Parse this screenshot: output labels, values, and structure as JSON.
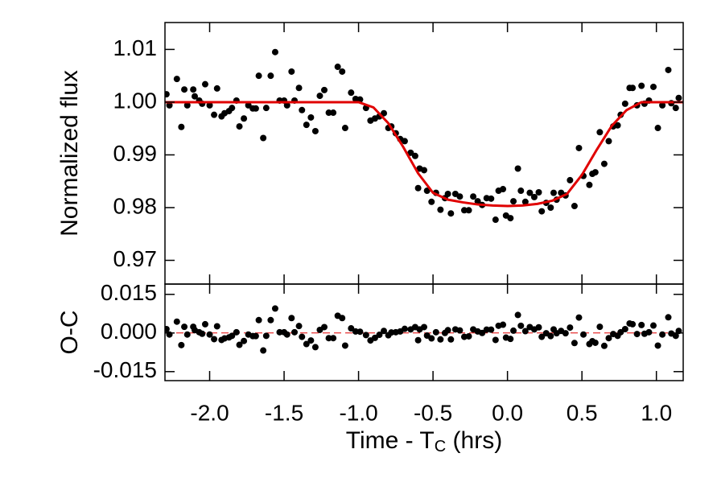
{
  "chart_data": [
    {
      "type": "scatter",
      "ylabel": "Normalized flux",
      "xlim": [
        -2.3,
        1.18
      ],
      "ylim": [
        0.9655,
        1.0151
      ],
      "xticks": [
        -2.0,
        -1.5,
        -1.0,
        -0.5,
        0.0,
        0.5,
        1.0
      ],
      "show_xtick_labels": false,
      "yticks": [
        0.97,
        0.98,
        0.99,
        {
          "value": 1.0,
          "label": "1.00"
        },
        1.01
      ],
      "x": [
        -2.29,
        -2.27,
        -2.22,
        -2.19,
        -2.17,
        -2.15,
        -2.11,
        -2.1,
        -2.07,
        -2.05,
        -2.03,
        -2.0,
        -1.97,
        -1.95,
        -1.92,
        -1.9,
        -1.87,
        -1.85,
        -1.82,
        -1.8,
        -1.77,
        -1.74,
        -1.71,
        -1.69,
        -1.67,
        -1.64,
        -1.62,
        -1.59,
        -1.56,
        -1.53,
        -1.5,
        -1.48,
        -1.45,
        -1.43,
        -1.4,
        -1.38,
        -1.35,
        -1.32,
        -1.29,
        -1.26,
        -1.23,
        -1.2,
        -1.17,
        -1.14,
        -1.11,
        -1.09,
        -1.05,
        -1.02,
        -0.99,
        -0.95,
        -0.92,
        -0.89,
        -0.86,
        -0.83,
        -0.8,
        -0.78,
        -0.75,
        -0.72,
        -0.69,
        -0.65,
        -0.62,
        -0.6,
        -0.59,
        -0.56,
        -0.54,
        -0.51,
        -0.48,
        -0.45,
        -0.42,
        -0.4,
        -0.38,
        -0.35,
        -0.32,
        -0.29,
        -0.26,
        -0.23,
        -0.2,
        -0.17,
        -0.14,
        -0.11,
        -0.08,
        -0.06,
        -0.03,
        -0.01,
        0.02,
        0.04,
        0.07,
        0.09,
        0.12,
        0.15,
        0.18,
        0.21,
        0.23,
        0.26,
        0.29,
        0.31,
        0.33,
        0.36,
        0.39,
        0.42,
        0.45,
        0.48,
        0.51,
        0.55,
        0.57,
        0.59,
        0.62,
        0.65,
        0.68,
        0.71,
        0.74,
        0.76,
        0.79,
        0.82,
        0.84,
        0.87,
        0.9,
        0.92,
        0.95,
        0.98,
        1.01,
        1.04,
        1.08,
        1.1,
        1.13,
        1.15
      ],
      "series": [
        {
          "style": "points",
          "color": "#000000",
          "values": [
            1.0015,
            0.9994,
            1.0044,
            0.9953,
            1.0024,
            0.9994,
            1.0024,
            1.0011,
            1.0003,
            0.9997,
            1.0034,
            0.9994,
            0.9976,
            1.0026,
            0.9973,
            0.9979,
            0.9983,
            0.9989,
            1.0003,
            0.9954,
            0.9969,
            0.9994,
            0.9988,
            0.9988,
            1.005,
            0.9932,
            0.9989,
            1.005,
            1.0095,
            1.0003,
            1.0003,
            0.9994,
            1.0058,
            1.0003,
            1.0027,
            0.9985,
            0.9957,
            0.9971,
            0.9945,
            1.0012,
            1.0023,
            0.998,
            0.998,
            1.0067,
            1.0058,
            0.9951,
            1.0018,
            1.0006,
            1.0005,
            0.9989,
            0.9965,
            0.9969,
            0.9973,
            0.9979,
            0.9951,
            0.9954,
            0.9941,
            0.993,
            0.9926,
            0.9904,
            0.9898,
            0.9837,
            0.9874,
            0.9871,
            0.9832,
            0.9811,
            0.9828,
            0.9796,
            0.9818,
            0.9826,
            0.9789,
            0.9826,
            0.9821,
            0.9795,
            0.9795,
            0.9821,
            0.9812,
            0.9805,
            0.9818,
            0.9817,
            0.9777,
            0.9832,
            0.9835,
            0.9785,
            0.978,
            0.9812,
            0.9874,
            0.9832,
            0.9811,
            0.9828,
            0.982,
            0.9829,
            0.9793,
            0.9809,
            0.98,
            0.9828,
            0.9815,
            0.9828,
            0.9823,
            0.9852,
            0.9803,
            0.9913,
            0.986,
            0.9843,
            0.9864,
            0.9867,
            0.9943,
            0.9883,
            0.9926,
            0.9954,
            0.9956,
            0.9976,
            0.9997,
            1.0027,
            1.0027,
            0.9994,
            1.0031,
            0.9997,
            1.0003,
            1.0029,
            0.9951,
            0.9994,
            1.0061,
            0.9998,
            0.9989,
            1.0008
          ]
        },
        {
          "style": "line",
          "color": "#e00000",
          "x": [
            -2.3,
            -1.0,
            -0.9,
            -0.8,
            -0.7,
            -0.6,
            -0.5,
            -0.4,
            -0.3,
            -0.2,
            -0.1,
            0.0,
            0.1,
            0.2,
            0.3,
            0.4,
            0.5,
            0.6,
            0.7,
            0.8,
            0.9,
            1.18
          ],
          "values": [
            1.0,
            1.0,
            0.999,
            0.996,
            0.9915,
            0.9865,
            0.9828,
            0.9815,
            0.981,
            0.9806,
            0.9804,
            0.9803,
            0.9804,
            0.9807,
            0.9813,
            0.9826,
            0.9862,
            0.991,
            0.9955,
            0.9985,
            1.0,
            1.0
          ]
        }
      ]
    },
    {
      "type": "scatter",
      "ylabel": "O-C",
      "xlabel": [
        "Time - T",
        "C",
        " (hrs)"
      ],
      "xlim": [
        -2.3,
        1.18
      ],
      "ylim": [
        -0.0185,
        0.019
      ],
      "xticks": [
        {
          "value": -2.0,
          "label": "-2.0"
        },
        -1.5,
        {
          "value": -1.0,
          "label": "-1.0"
        },
        -0.5,
        {
          "value": 0.0,
          "label": "0.0"
        },
        0.5,
        {
          "value": 1.0,
          "label": "1.0"
        }
      ],
      "show_xtick_labels": true,
      "yticks": [
        {
          "value": -0.015,
          "label": "-0.015"
        },
        {
          "value": 0,
          "label": "0.000"
        },
        {
          "value": 0.015,
          "label": "0.015"
        }
      ],
      "hline": 0,
      "hline_color": "#e00000",
      "x": [
        -2.29,
        -2.27,
        -2.22,
        -2.19,
        -2.17,
        -2.15,
        -2.11,
        -2.1,
        -2.07,
        -2.05,
        -2.03,
        -2.0,
        -1.97,
        -1.95,
        -1.92,
        -1.9,
        -1.87,
        -1.85,
        -1.82,
        -1.8,
        -1.77,
        -1.74,
        -1.71,
        -1.69,
        -1.67,
        -1.64,
        -1.62,
        -1.59,
        -1.56,
        -1.53,
        -1.5,
        -1.48,
        -1.45,
        -1.43,
        -1.4,
        -1.38,
        -1.35,
        -1.32,
        -1.29,
        -1.26,
        -1.23,
        -1.2,
        -1.17,
        -1.14,
        -1.11,
        -1.09,
        -1.05,
        -1.02,
        -0.99,
        -0.95,
        -0.92,
        -0.89,
        -0.86,
        -0.83,
        -0.8,
        -0.78,
        -0.75,
        -0.72,
        -0.69,
        -0.65,
        -0.62,
        -0.6,
        -0.59,
        -0.56,
        -0.54,
        -0.51,
        -0.48,
        -0.45,
        -0.42,
        -0.4,
        -0.38,
        -0.35,
        -0.32,
        -0.29,
        -0.26,
        -0.23,
        -0.2,
        -0.17,
        -0.14,
        -0.11,
        -0.08,
        -0.06,
        -0.03,
        -0.01,
        0.02,
        0.04,
        0.07,
        0.09,
        0.12,
        0.15,
        0.18,
        0.21,
        0.23,
        0.26,
        0.29,
        0.31,
        0.33,
        0.36,
        0.39,
        0.42,
        0.45,
        0.48,
        0.51,
        0.55,
        0.57,
        0.59,
        0.62,
        0.65,
        0.68,
        0.71,
        0.74,
        0.76,
        0.79,
        0.82,
        0.84,
        0.87,
        0.9,
        0.92,
        0.95,
        0.98,
        1.01,
        1.04,
        1.08,
        1.1,
        1.13,
        1.15
      ],
      "series": [
        {
          "style": "points",
          "color": "#000000",
          "values": [
            0.0015,
            -0.0006,
            0.0044,
            -0.0047,
            0.0024,
            -0.0006,
            0.0024,
            0.0011,
            0.0003,
            -0.0003,
            0.0034,
            -0.0006,
            -0.0024,
            0.0026,
            -0.0027,
            -0.0021,
            -0.0017,
            -0.0011,
            0.0003,
            -0.0046,
            -0.0031,
            -0.0006,
            -0.0012,
            -0.0012,
            0.005,
            -0.0068,
            -0.0011,
            0.005,
            0.0095,
            0.0003,
            0.0003,
            -0.0006,
            0.0058,
            0.0003,
            0.0027,
            -0.0015,
            -0.0043,
            -0.0029,
            -0.0055,
            0.0012,
            0.0023,
            -0.002,
            -0.002,
            0.0067,
            0.0058,
            -0.0049,
            0.0018,
            0.0006,
            0.0005,
            -0.0008,
            -0.0029,
            -0.0019,
            -0.0007,
            0.0008,
            -0.0009,
            0.0002,
            0.0003,
            0.0006,
            0.0016,
            0.0014,
            0.0023,
            -0.0028,
            0.0014,
            0.0023,
            -0.001,
            -0.0021,
            0.0003,
            -0.0025,
            0.0,
            0.0011,
            -0.0025,
            0.0014,
            0.001,
            -0.0015,
            -0.0013,
            0.0014,
            0.0006,
            0.0,
            0.0013,
            0.0013,
            -0.0027,
            0.0028,
            0.0032,
            -0.0018,
            -0.0023,
            0.0009,
            0.007,
            0.0028,
            0.0007,
            0.0023,
            0.0014,
            0.0022,
            -0.0015,
            -0.0001,
            -0.0012,
            0.0014,
            -0.0001,
            0.0008,
            -0.0001,
            0.0021,
            -0.0039,
            0.006,
            -0.0006,
            -0.0043,
            -0.0032,
            -0.0038,
            0.0024,
            -0.005,
            -0.002,
            -0.0004,
            -0.0011,
            0.0003,
            0.0015,
            0.0037,
            0.0034,
            -0.0004,
            0.0031,
            -0.0003,
            0.0003,
            0.0029,
            -0.0049,
            -0.0006,
            0.0061,
            -0.0002,
            -0.0011,
            0.0008
          ]
        }
      ]
    }
  ]
}
